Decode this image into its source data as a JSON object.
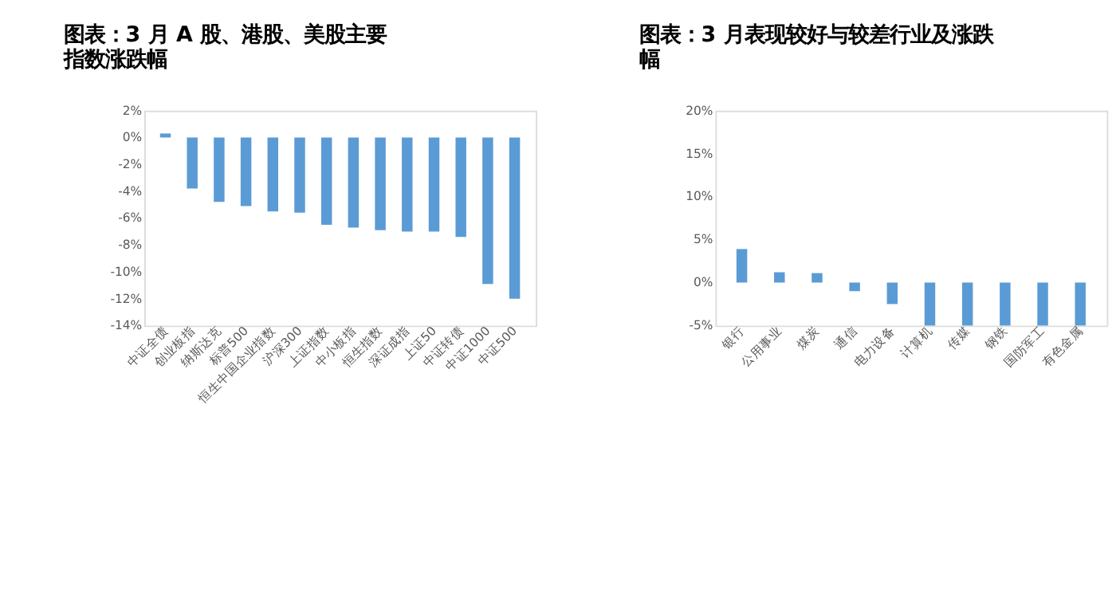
{
  "chart_data": [
    {
      "type": "bar",
      "title": "图表：3 月 A 股、港股、美股主要指数涨跌幅",
      "categories": [
        "中证全债",
        "创业板指",
        "纳斯达克",
        "标普500",
        "恒生中国企业指数",
        "沪深300",
        "上证指数",
        "中小板指",
        "恒生指数",
        "深证成指",
        "上证50",
        "中证转债",
        "中证1000",
        "中证500"
      ],
      "values": [
        0.3,
        -3.8,
        -4.8,
        -5.1,
        -5.5,
        -5.6,
        -6.5,
        -6.7,
        -6.9,
        -7.0,
        -7.0,
        -7.4,
        -10.9,
        -12.0
      ],
      "color": "#5b9bd5",
      "ylim": [
        -14,
        2
      ],
      "yticks": [
        {
          "value": 2,
          "label": "2%"
        },
        {
          "value": 0,
          "label": "0%"
        },
        {
          "value": -2,
          "label": "-2%"
        },
        {
          "value": -4,
          "label": "-4%"
        },
        {
          "value": -6,
          "label": "-6%"
        },
        {
          "value": -8,
          "label": "-8%"
        },
        {
          "value": -10,
          "label": "-10%"
        },
        {
          "value": -12,
          "label": "-12%"
        },
        {
          "value": -14,
          "label": "-14%"
        }
      ],
      "grid": false,
      "legend": false
    },
    {
      "type": "bar",
      "title": "图表：3 月表现较好与较差行业及涨跌幅",
      "categories": [
        "银行",
        "公用事业",
        "煤炭",
        "通信",
        "电力设备",
        "计算机",
        "传媒",
        "钢铁",
        "国防军工",
        "有色金属"
      ],
      "values": [
        3.9,
        1.2,
        1.1,
        -1.0,
        -2.5,
        -5.0,
        -5.0,
        -5.0,
        -5.0,
        -5.0
      ],
      "color": "#5b9bd5",
      "ylim": [
        -5,
        20
      ],
      "yticks": [
        {
          "value": 20,
          "label": "20%"
        },
        {
          "value": 15,
          "label": "15%"
        },
        {
          "value": 10,
          "label": "10%"
        },
        {
          "value": 5,
          "label": "5%"
        },
        {
          "value": 0,
          "label": "0%"
        },
        {
          "value": -5,
          "label": "-5%"
        }
      ],
      "grid": false,
      "legend": false
    }
  ]
}
